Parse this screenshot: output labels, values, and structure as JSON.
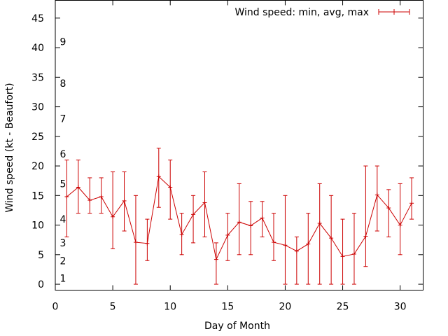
{
  "chart_data": {
    "type": "line",
    "title": "",
    "xlabel": "Day of Month",
    "ylabel": "Wind speed (kt - Beaufort)",
    "xlim": [
      0,
      32
    ],
    "ylim": [
      -1,
      48
    ],
    "xticks": [
      0,
      5,
      10,
      15,
      20,
      25,
      30
    ],
    "yticks": [
      0,
      5,
      10,
      15,
      20,
      25,
      30,
      35,
      40,
      45
    ],
    "grid": false,
    "legend_position": "top-right",
    "beaufort_labels": [
      {
        "label": "1",
        "y": 1
      },
      {
        "label": "2",
        "y": 4
      },
      {
        "label": "3",
        "y": 7
      },
      {
        "label": "4",
        "y": 11
      },
      {
        "label": "5",
        "y": 17
      },
      {
        "label": "6",
        "y": 22
      },
      {
        "label": "7",
        "y": 28
      },
      {
        "label": "8",
        "y": 34
      },
      {
        "label": "9",
        "y": 41
      }
    ],
    "series": [
      {
        "name": "Wind speed: min, avg, max",
        "color": "#cc0000",
        "x": [
          1,
          2,
          3,
          4,
          5,
          6,
          7,
          8,
          9,
          10,
          11,
          12,
          13,
          14,
          15,
          16,
          17,
          18,
          19,
          20,
          21,
          22,
          23,
          24,
          25,
          26,
          27,
          28,
          29,
          30,
          31
        ],
        "avg": [
          14.8,
          16.4,
          14.2,
          14.8,
          11.4,
          14.1,
          7.1,
          6.9,
          18.2,
          16.4,
          8.4,
          11.8,
          13.8,
          4.2,
          8.3,
          10.5,
          9.9,
          11.2,
          7.1,
          6.6,
          5.6,
          6.8,
          10.3,
          7.8,
          4.7,
          5.1,
          8.1,
          15.1,
          12.9,
          10.0,
          13.7
        ],
        "min": [
          8,
          12,
          12,
          12,
          6,
          9,
          0,
          4,
          13,
          11,
          5,
          7,
          8,
          0,
          4,
          5,
          5,
          8,
          4,
          0,
          0,
          0,
          0,
          0,
          0,
          0,
          3,
          9,
          8,
          5,
          11
        ],
        "max": [
          21,
          21,
          18,
          18,
          19,
          19,
          15,
          11,
          23,
          21,
          12,
          15,
          19,
          7,
          12,
          17,
          14,
          14,
          12,
          15,
          8,
          12,
          17,
          15,
          11,
          12,
          20,
          20,
          16,
          17,
          18
        ]
      }
    ]
  }
}
